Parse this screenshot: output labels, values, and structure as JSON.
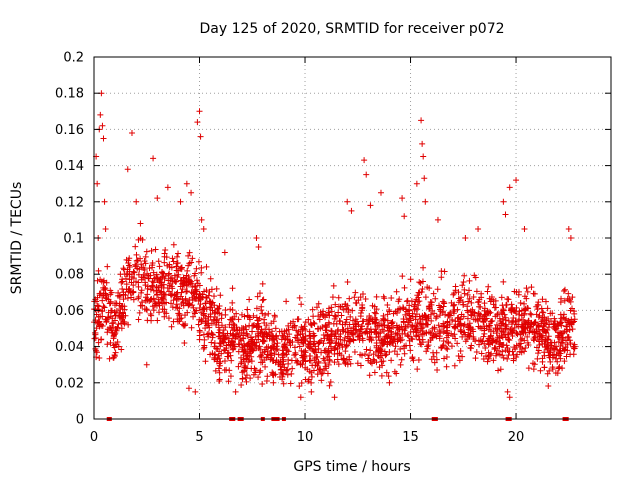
{
  "chart_data": {
    "type": "scatter",
    "title": "Day 125 of 2020, SRMTID for receiver p072",
    "xlabel": "GPS time / hours",
    "ylabel": "SRMTID / TECUs",
    "xlim": [
      0,
      24.5
    ],
    "ylim": [
      0,
      0.2
    ],
    "xticks": [
      0,
      5,
      10,
      15,
      20
    ],
    "xtick_labels": [
      "0",
      "5",
      "10",
      "15",
      "20"
    ],
    "yticks": [
      0,
      0.02,
      0.04,
      0.06,
      0.08,
      0.1,
      0.12,
      0.14,
      0.16,
      0.18,
      0.2
    ],
    "ytick_labels": [
      "0",
      "0.02",
      "0.04",
      "0.06",
      "0.08",
      "0.1",
      "0.12",
      "0.14",
      "0.16",
      "0.18",
      "0.2"
    ],
    "grid": true,
    "marker": "+",
    "color": "#e00000",
    "series": [
      {
        "name": "SRMTID",
        "profile_x": [
          0,
          0.5,
          1,
          1.5,
          2,
          2.5,
          3,
          3.5,
          4,
          4.5,
          5,
          5.5,
          6,
          6.5,
          7,
          7.5,
          8,
          8.5,
          9,
          9.5,
          10,
          10.5,
          11,
          11.5,
          12,
          12.5,
          13,
          13.5,
          14,
          14.5,
          15,
          15.5,
          16,
          16.5,
          17,
          17.5,
          18,
          18.5,
          19,
          19.5,
          20,
          20.5,
          21,
          21.5,
          22,
          22.5
        ],
        "profile_center": [
          0.055,
          0.062,
          0.048,
          0.072,
          0.08,
          0.075,
          0.07,
          0.072,
          0.068,
          0.07,
          0.065,
          0.055,
          0.045,
          0.042,
          0.04,
          0.043,
          0.047,
          0.04,
          0.038,
          0.042,
          0.04,
          0.038,
          0.042,
          0.045,
          0.05,
          0.052,
          0.048,
          0.045,
          0.047,
          0.05,
          0.052,
          0.055,
          0.05,
          0.052,
          0.055,
          0.058,
          0.055,
          0.053,
          0.05,
          0.05,
          0.052,
          0.055,
          0.05,
          0.045,
          0.043,
          0.05
        ],
        "spread": 0.015,
        "count": 2400,
        "outliers": [
          [
            0.1,
            0.145
          ],
          [
            0.15,
            0.13
          ],
          [
            0.2,
            0.1
          ],
          [
            0.25,
            0.16
          ],
          [
            0.3,
            0.168
          ],
          [
            0.35,
            0.18
          ],
          [
            0.4,
            0.162
          ],
          [
            0.45,
            0.155
          ],
          [
            0.5,
            0.12
          ],
          [
            0.55,
            0.105
          ],
          [
            1.6,
            0.138
          ],
          [
            1.8,
            0.158
          ],
          [
            2.0,
            0.12
          ],
          [
            2.2,
            0.108
          ],
          [
            2.8,
            0.144
          ],
          [
            3.0,
            0.122
          ],
          [
            3.5,
            0.128
          ],
          [
            4.1,
            0.12
          ],
          [
            4.4,
            0.13
          ],
          [
            4.6,
            0.125
          ],
          [
            4.9,
            0.164
          ],
          [
            5.0,
            0.17
          ],
          [
            5.05,
            0.156
          ],
          [
            5.1,
            0.11
          ],
          [
            5.2,
            0.105
          ],
          [
            6.2,
            0.092
          ],
          [
            7.7,
            0.1
          ],
          [
            7.8,
            0.095
          ],
          [
            12.0,
            0.12
          ],
          [
            12.2,
            0.115
          ],
          [
            12.8,
            0.143
          ],
          [
            12.9,
            0.135
          ],
          [
            13.1,
            0.118
          ],
          [
            13.6,
            0.125
          ],
          [
            14.6,
            0.122
          ],
          [
            14.7,
            0.112
          ],
          [
            15.3,
            0.13
          ],
          [
            15.5,
            0.165
          ],
          [
            15.55,
            0.152
          ],
          [
            15.6,
            0.145
          ],
          [
            15.65,
            0.133
          ],
          [
            15.7,
            0.12
          ],
          [
            16.3,
            0.11
          ],
          [
            17.6,
            0.1
          ],
          [
            18.2,
            0.105
          ],
          [
            19.4,
            0.12
          ],
          [
            19.5,
            0.113
          ],
          [
            19.7,
            0.128
          ],
          [
            20.0,
            0.132
          ],
          [
            20.4,
            0.105
          ],
          [
            22.5,
            0.105
          ],
          [
            22.6,
            0.1
          ],
          [
            19.6,
            0.015
          ],
          [
            19.7,
            0.012
          ],
          [
            2.5,
            0.03
          ],
          [
            4.5,
            0.017
          ],
          [
            4.8,
            0.015
          ],
          [
            8.5,
            0.02
          ],
          [
            9.8,
            0.012
          ],
          [
            10.3,
            0.015
          ],
          [
            11.4,
            0.012
          ],
          [
            14.0,
            0.02
          ],
          [
            21.5,
            0.025
          ]
        ],
        "zeros": [
          0.7,
          0.75,
          6.5,
          6.6,
          6.9,
          7.0,
          8.0,
          8.5,
          8.6,
          8.7,
          9.0,
          16.1,
          16.2,
          19.6,
          19.7,
          22.3,
          22.4
        ]
      }
    ]
  }
}
